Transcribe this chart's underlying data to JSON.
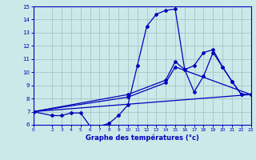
{
  "bg_color": "#cce8e8",
  "line_color": "#0000bb",
  "grid_color": "#aacccc",
  "xlabel": "Graphe des températures (°c)",
  "xlim": [
    0,
    23
  ],
  "ylim": [
    6,
    15
  ],
  "yticks": [
    6,
    7,
    8,
    9,
    10,
    11,
    12,
    13,
    14,
    15
  ],
  "xticks": [
    0,
    2,
    3,
    4,
    5,
    6,
    7,
    8,
    9,
    10,
    11,
    12,
    13,
    14,
    15,
    16,
    17,
    18,
    19,
    20,
    21,
    22,
    23
  ],
  "series": [
    {
      "x": [
        0,
        2,
        3,
        4,
        5,
        6,
        7,
        8,
        9,
        10,
        11,
        12,
        13,
        14,
        15,
        16,
        17,
        18,
        19,
        20,
        21,
        22,
        23
      ],
      "y": [
        7.0,
        6.7,
        6.7,
        6.9,
        6.9,
        5.9,
        5.9,
        6.1,
        6.7,
        7.5,
        10.5,
        13.5,
        14.4,
        14.7,
        14.8,
        10.2,
        8.5,
        9.7,
        11.5,
        10.4,
        9.3,
        8.3,
        8.3
      ]
    },
    {
      "x": [
        0,
        10,
        14,
        15,
        16,
        17,
        18,
        19,
        20,
        21,
        22,
        23
      ],
      "y": [
        7.0,
        8.3,
        9.4,
        10.8,
        10.2,
        10.5,
        11.5,
        11.7,
        10.4,
        9.3,
        8.3,
        8.3
      ]
    },
    {
      "x": [
        0,
        10,
        14,
        15,
        23
      ],
      "y": [
        7.0,
        8.1,
        9.2,
        10.4,
        8.3
      ]
    },
    {
      "x": [
        0,
        23
      ],
      "y": [
        7.0,
        8.3
      ]
    }
  ]
}
